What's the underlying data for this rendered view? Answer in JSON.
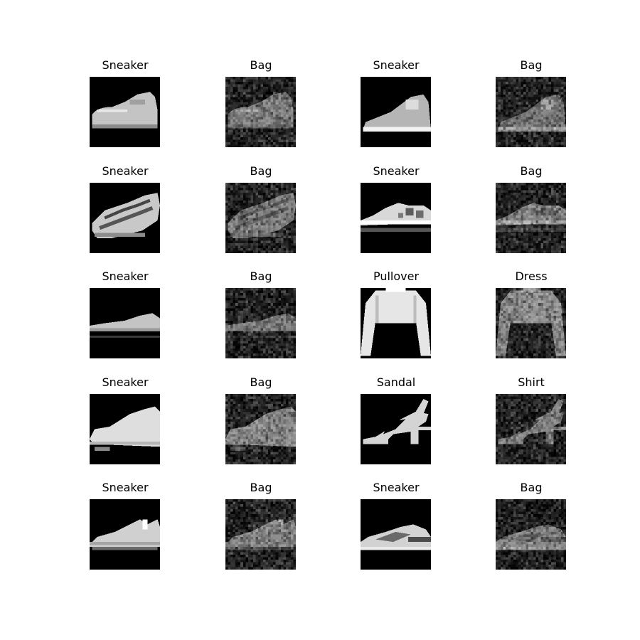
{
  "grid": {
    "rows": 5,
    "cols": 4,
    "colors": {
      "background": "#ffffff",
      "text": "#000000"
    },
    "items": [
      {
        "title": "Sneaker",
        "shape": "sneaker-low",
        "noisy": false
      },
      {
        "title": "Bag",
        "shape": "sneaker-low",
        "noisy": true
      },
      {
        "title": "Sneaker",
        "shape": "sneaker-wedge",
        "noisy": false
      },
      {
        "title": "Bag",
        "shape": "sneaker-wedge",
        "noisy": true
      },
      {
        "title": "Sneaker",
        "shape": "sneaker-runner",
        "noisy": false
      },
      {
        "title": "Bag",
        "shape": "sneaker-runner",
        "noisy": true
      },
      {
        "title": "Sneaker",
        "shape": "sneaker-flat",
        "noisy": false
      },
      {
        "title": "Bag",
        "shape": "sneaker-flat",
        "noisy": true
      },
      {
        "title": "Sneaker",
        "shape": "sneaker-slim",
        "noisy": false
      },
      {
        "title": "Bag",
        "shape": "sneaker-slim",
        "noisy": true
      },
      {
        "title": "Pullover",
        "shape": "pullover",
        "noisy": false
      },
      {
        "title": "Dress",
        "shape": "pullover",
        "noisy": true
      },
      {
        "title": "Sneaker",
        "shape": "sneaker-high",
        "noisy": false
      },
      {
        "title": "Bag",
        "shape": "sneaker-high",
        "noisy": true
      },
      {
        "title": "Sandal",
        "shape": "sandal",
        "noisy": false
      },
      {
        "title": "Shirt",
        "shape": "sandal",
        "noisy": true
      },
      {
        "title": "Sneaker",
        "shape": "sneaker-low2",
        "noisy": false
      },
      {
        "title": "Bag",
        "shape": "sneaker-low2",
        "noisy": true
      },
      {
        "title": "Sneaker",
        "shape": "sneaker-trim",
        "noisy": false
      },
      {
        "title": "Bag",
        "shape": "sneaker-trim",
        "noisy": true
      }
    ]
  }
}
